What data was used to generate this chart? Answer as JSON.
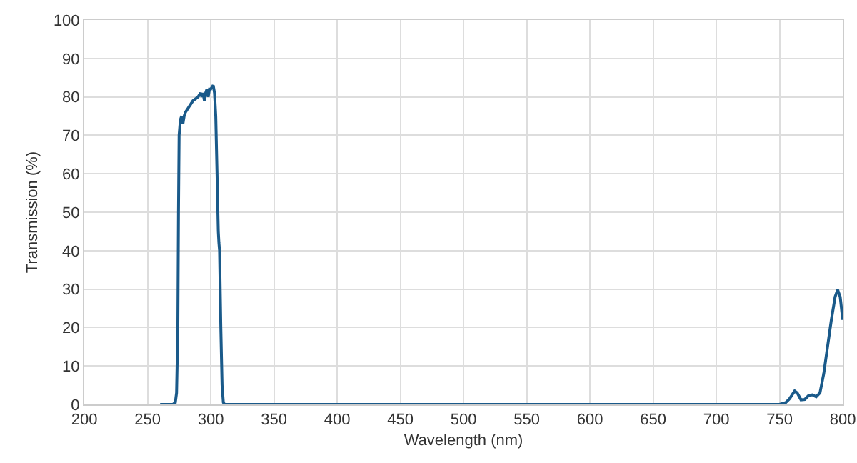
{
  "chart_data": {
    "type": "line",
    "xlabel": "Wavelength (nm)",
    "ylabel": "Transmission (%)",
    "xlim": [
      200,
      800
    ],
    "xticks": [
      200,
      250,
      300,
      350,
      400,
      450,
      500,
      550,
      600,
      650,
      700,
      750,
      800
    ],
    "ylim": [
      0,
      100
    ],
    "yticks": [
      0,
      10,
      20,
      30,
      40,
      50,
      60,
      70,
      80,
      90,
      100
    ],
    "grid": true,
    "series": [
      {
        "color": "#1a5a8a",
        "x": [
          260,
          270,
          272,
          273,
          274,
          274.5,
          275,
          276,
          277,
          278,
          279,
          280,
          282,
          284,
          286,
          288,
          290,
          292,
          293,
          294,
          295,
          296,
          297,
          298,
          299,
          300,
          301,
          302,
          303,
          304,
          305,
          306,
          306.5,
          307,
          308,
          309,
          310,
          311,
          400,
          600,
          750,
          755,
          758,
          762,
          764,
          767,
          770,
          773,
          776,
          779,
          782,
          785,
          788,
          791,
          794,
          796,
          798,
          799,
          800
        ],
        "values": [
          0,
          0,
          0.5,
          3,
          20,
          50,
          70,
          74,
          75,
          73,
          75,
          76,
          77,
          78,
          79,
          79.5,
          80,
          81,
          80,
          81,
          79,
          81,
          82,
          80,
          82,
          82,
          82.5,
          83,
          81,
          75,
          60,
          45,
          42,
          40,
          20,
          5,
          0.5,
          0,
          0,
          0,
          0,
          0.5,
          1.5,
          3.5,
          3,
          1.2,
          1.3,
          2.3,
          2.5,
          2,
          3,
          8,
          15,
          22,
          28,
          29.8,
          28,
          25,
          22
        ]
      }
    ]
  }
}
